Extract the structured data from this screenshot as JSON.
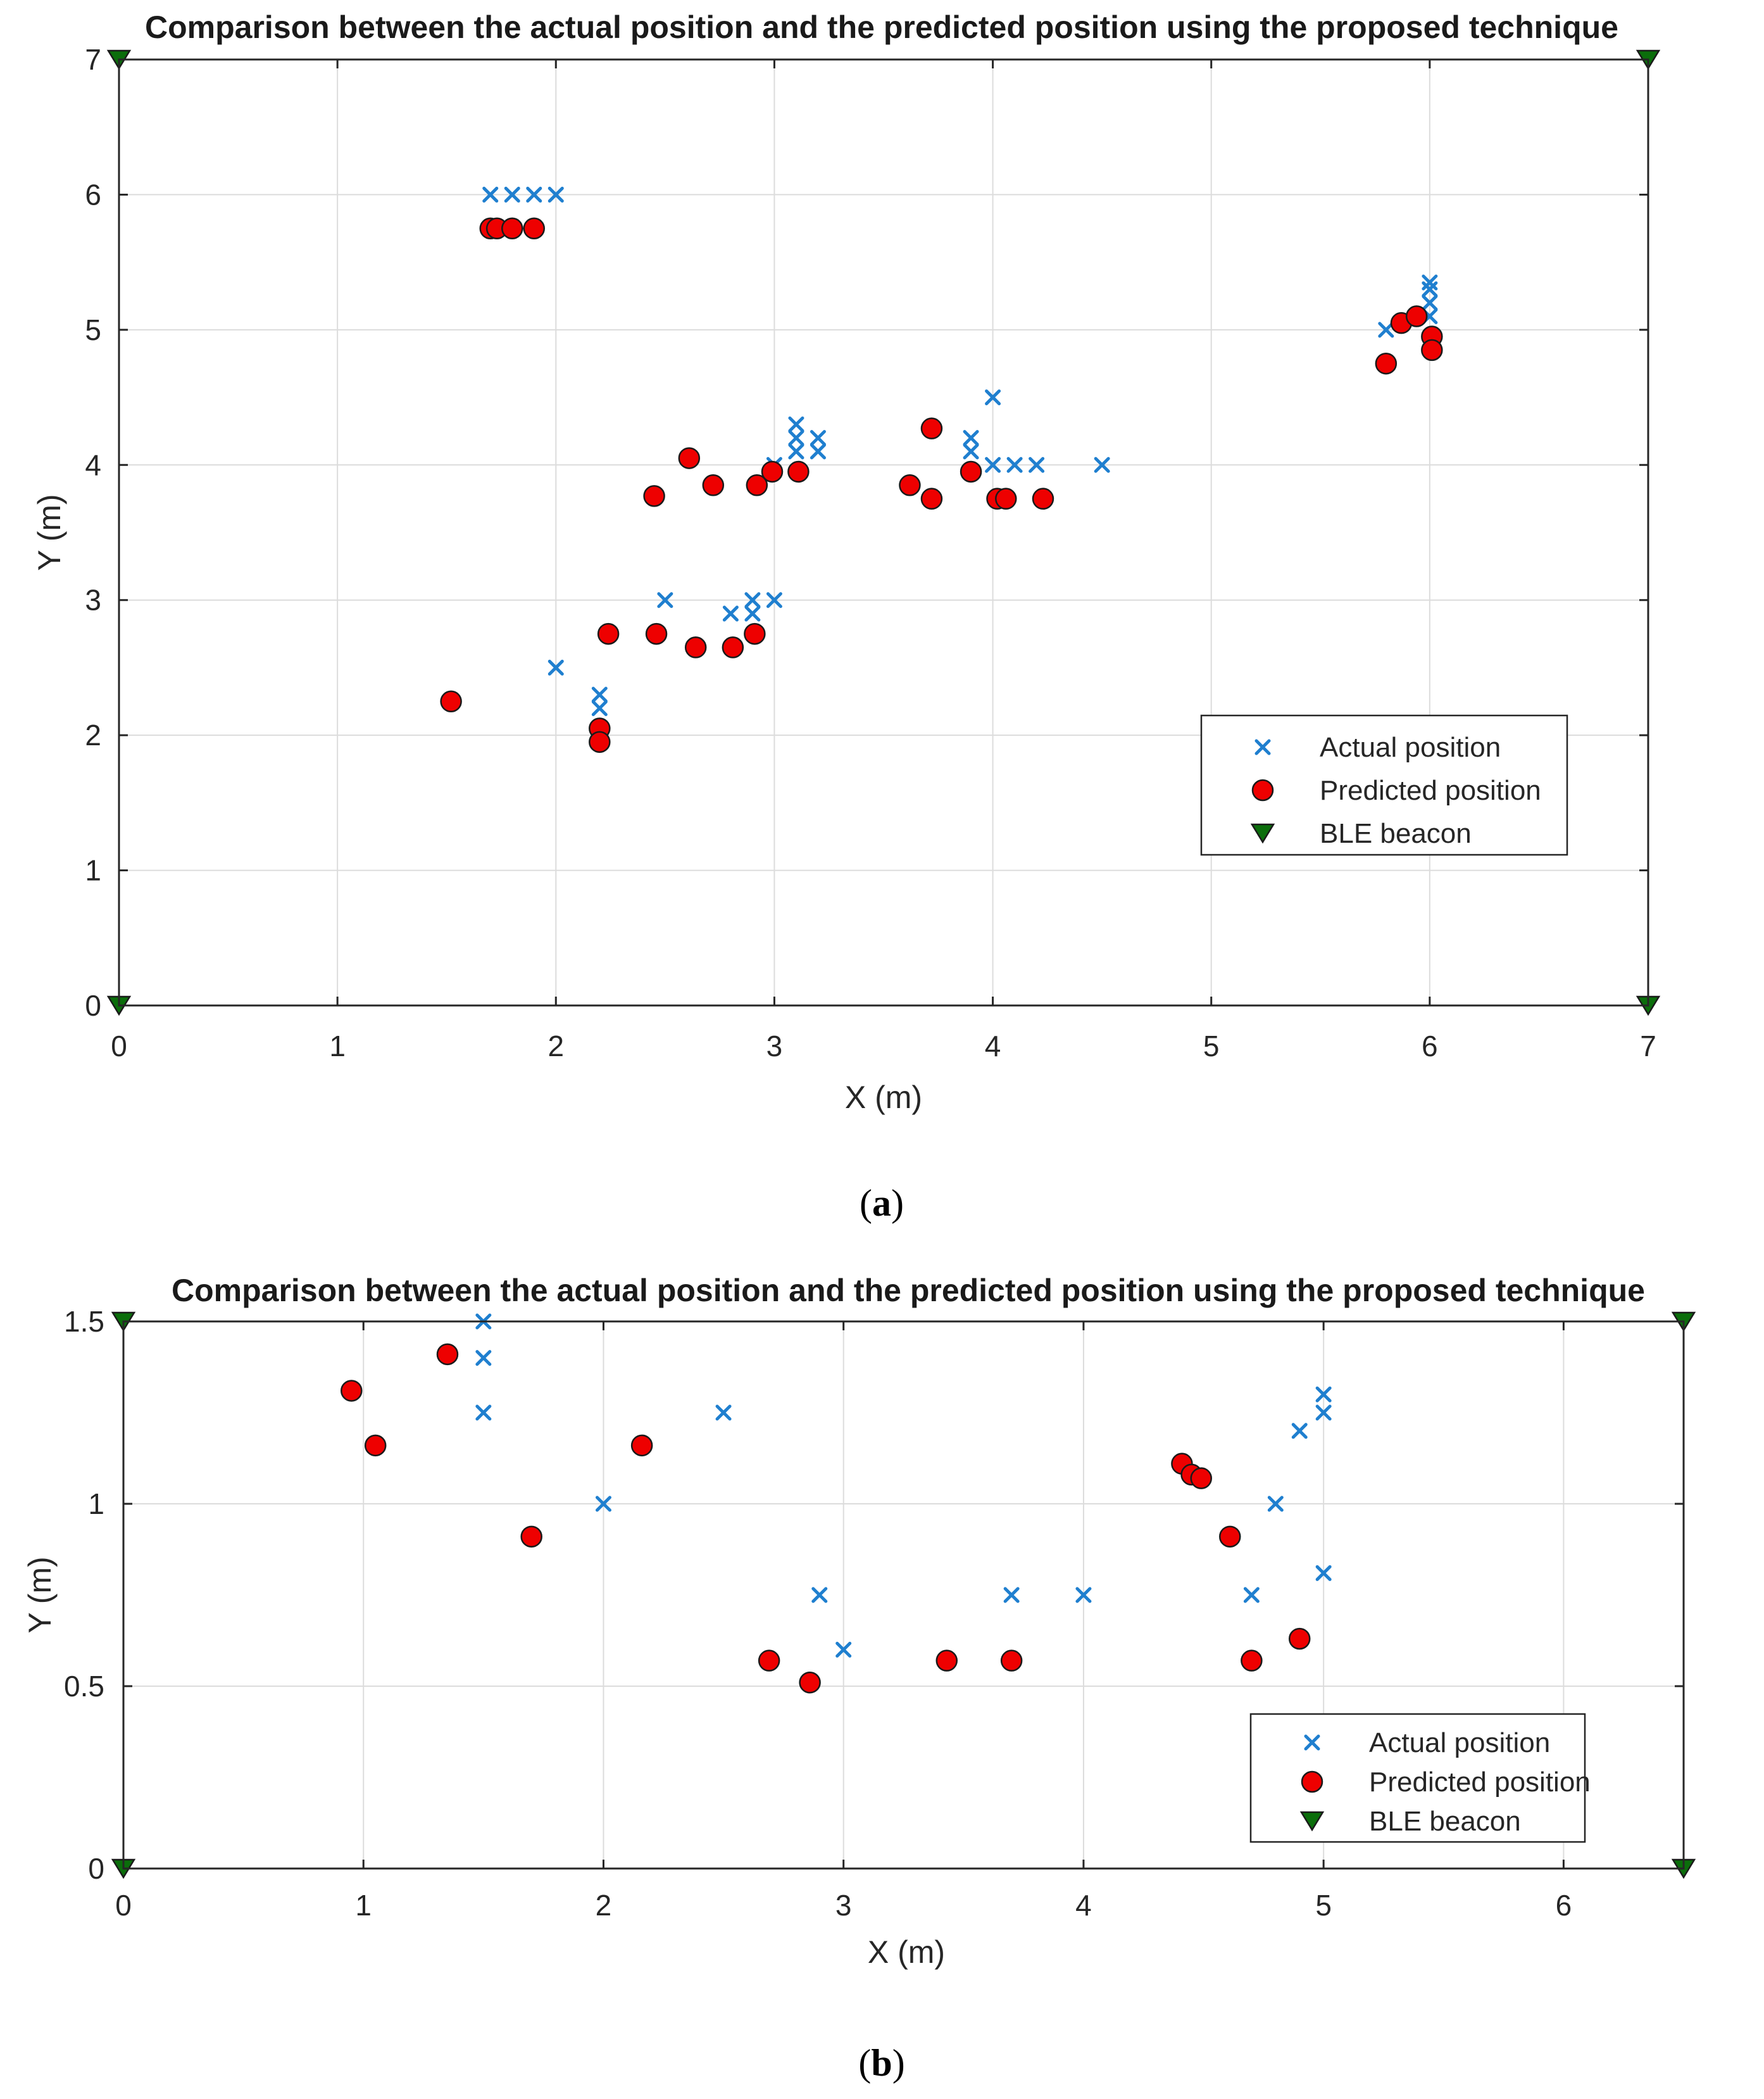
{
  "colors": {
    "actual": "#1f7fcf",
    "predicted": "#ee0000",
    "beacon": "#0b6e0b"
  },
  "chart_data": [
    {
      "type": "scatter",
      "title": "Comparison between the actual position and the predicted position using the proposed technique",
      "xlabel": "X (m)",
      "ylabel": "Y (m)",
      "xlim": [
        0,
        7
      ],
      "ylim": [
        0,
        7
      ],
      "xticks": [
        0,
        1,
        2,
        3,
        4,
        5,
        6,
        7
      ],
      "yticks": [
        0,
        1,
        2,
        3,
        4,
        5,
        6,
        7
      ],
      "xtick_labels": [
        "0",
        "1",
        "2",
        "3",
        "4",
        "5",
        "6",
        "7"
      ],
      "ytick_labels": [
        "0",
        "1",
        "2",
        "3",
        "4",
        "5",
        "6",
        "7"
      ],
      "grid": true,
      "legend_position": "lower-right",
      "caption_letter": "a",
      "series": [
        {
          "name": "Actual position",
          "marker": "x",
          "points": [
            [
              1.7,
              6
            ],
            [
              1.8,
              6
            ],
            [
              1.9,
              6
            ],
            [
              2.0,
              6
            ],
            [
              2.0,
              2.5
            ],
            [
              2.2,
              2.3
            ],
            [
              2.2,
              2.2
            ],
            [
              2.5,
              3.0
            ],
            [
              2.8,
              2.9
            ],
            [
              2.9,
              3.0
            ],
            [
              2.9,
              2.9
            ],
            [
              3.0,
              3.0
            ],
            [
              3.0,
              4.0
            ],
            [
              3.1,
              4.3
            ],
            [
              3.1,
              4.2
            ],
            [
              3.1,
              4.1
            ],
            [
              3.2,
              4.2
            ],
            [
              3.2,
              4.1
            ],
            [
              3.9,
              4.2
            ],
            [
              3.9,
              4.1
            ],
            [
              4.0,
              4.5
            ],
            [
              4.0,
              4.0
            ],
            [
              4.1,
              4.0
            ],
            [
              4.2,
              4.0
            ],
            [
              4.5,
              4.0
            ],
            [
              5.8,
              5.0
            ],
            [
              6.0,
              5.35
            ],
            [
              6.0,
              5.3
            ],
            [
              6.0,
              5.2
            ],
            [
              6.0,
              5.1
            ]
          ]
        },
        {
          "name": "Predicted position",
          "marker": "o",
          "points": [
            [
              1.52,
              2.25
            ],
            [
              1.7,
              5.75
            ],
            [
              1.73,
              5.75
            ],
            [
              1.8,
              5.75
            ],
            [
              1.9,
              5.75
            ],
            [
              2.2,
              2.05
            ],
            [
              2.2,
              1.95
            ],
            [
              2.24,
              2.75
            ],
            [
              2.45,
              3.77
            ],
            [
              2.46,
              2.75
            ],
            [
              2.61,
              4.05
            ],
            [
              2.64,
              2.65
            ],
            [
              2.72,
              3.85
            ],
            [
              2.81,
              2.65
            ],
            [
              2.91,
              2.75
            ],
            [
              2.92,
              3.85
            ],
            [
              2.99,
              3.95
            ],
            [
              3.11,
              3.95
            ],
            [
              3.62,
              3.85
            ],
            [
              3.72,
              4.27
            ],
            [
              3.72,
              3.75
            ],
            [
              3.9,
              3.95
            ],
            [
              4.02,
              3.75
            ],
            [
              4.06,
              3.75
            ],
            [
              4.23,
              3.75
            ],
            [
              5.8,
              4.75
            ],
            [
              5.87,
              5.05
            ],
            [
              5.94,
              5.1
            ],
            [
              6.01,
              4.95
            ],
            [
              6.01,
              4.85
            ]
          ]
        },
        {
          "name": "BLE beacon",
          "marker": "v",
          "points": [
            [
              0,
              7
            ],
            [
              7,
              7
            ],
            [
              0,
              0
            ],
            [
              7,
              0
            ]
          ]
        }
      ]
    },
    {
      "type": "scatter",
      "title": "Comparison between the actual position and the predicted position using the proposed technique",
      "xlabel": "X (m)",
      "ylabel": "Y (m)",
      "xlim": [
        0,
        6.5
      ],
      "ylim": [
        0,
        1.5
      ],
      "xticks": [
        0,
        1,
        2,
        3,
        4,
        5,
        6
      ],
      "yticks": [
        0,
        0.5,
        1,
        1.5
      ],
      "xtick_labels": [
        "0",
        "1",
        "2",
        "3",
        "4",
        "5",
        "6"
      ],
      "ytick_labels": [
        "0",
        "0.5",
        "1",
        "1.5"
      ],
      "grid": true,
      "legend_position": "lower-right",
      "caption_letter": "b",
      "series": [
        {
          "name": "Actual position",
          "marker": "x",
          "points": [
            [
              1.5,
              1.5
            ],
            [
              1.5,
              1.4
            ],
            [
              1.5,
              1.25
            ],
            [
              2.0,
              1.0
            ],
            [
              2.5,
              1.25
            ],
            [
              2.9,
              0.75
            ],
            [
              3.0,
              0.6
            ],
            [
              3.7,
              0.75
            ],
            [
              4.0,
              0.75
            ],
            [
              4.7,
              0.75
            ],
            [
              4.8,
              1.0
            ],
            [
              4.9,
              1.2
            ],
            [
              5.0,
              1.3
            ],
            [
              5.0,
              1.25
            ],
            [
              5.0,
              0.81
            ]
          ]
        },
        {
          "name": " Predicted position",
          "marker": "o",
          "points": [
            [
              0.95,
              1.31
            ],
            [
              1.05,
              1.16
            ],
            [
              1.35,
              1.41
            ],
            [
              1.7,
              0.91
            ],
            [
              2.16,
              1.16
            ],
            [
              2.69,
              0.57
            ],
            [
              2.86,
              0.51
            ],
            [
              3.43,
              0.57
            ],
            [
              3.7,
              0.57
            ],
            [
              4.41,
              1.11
            ],
            [
              4.45,
              1.08
            ],
            [
              4.49,
              1.07
            ],
            [
              4.61,
              0.91
            ],
            [
              4.7,
              0.57
            ],
            [
              4.9,
              0.63
            ]
          ]
        },
        {
          "name": "BLE beacon",
          "marker": "v",
          "points": [
            [
              0,
              1.5
            ],
            [
              6.5,
              1.5
            ],
            [
              0,
              0
            ],
            [
              6.5,
              0
            ]
          ]
        }
      ]
    }
  ]
}
